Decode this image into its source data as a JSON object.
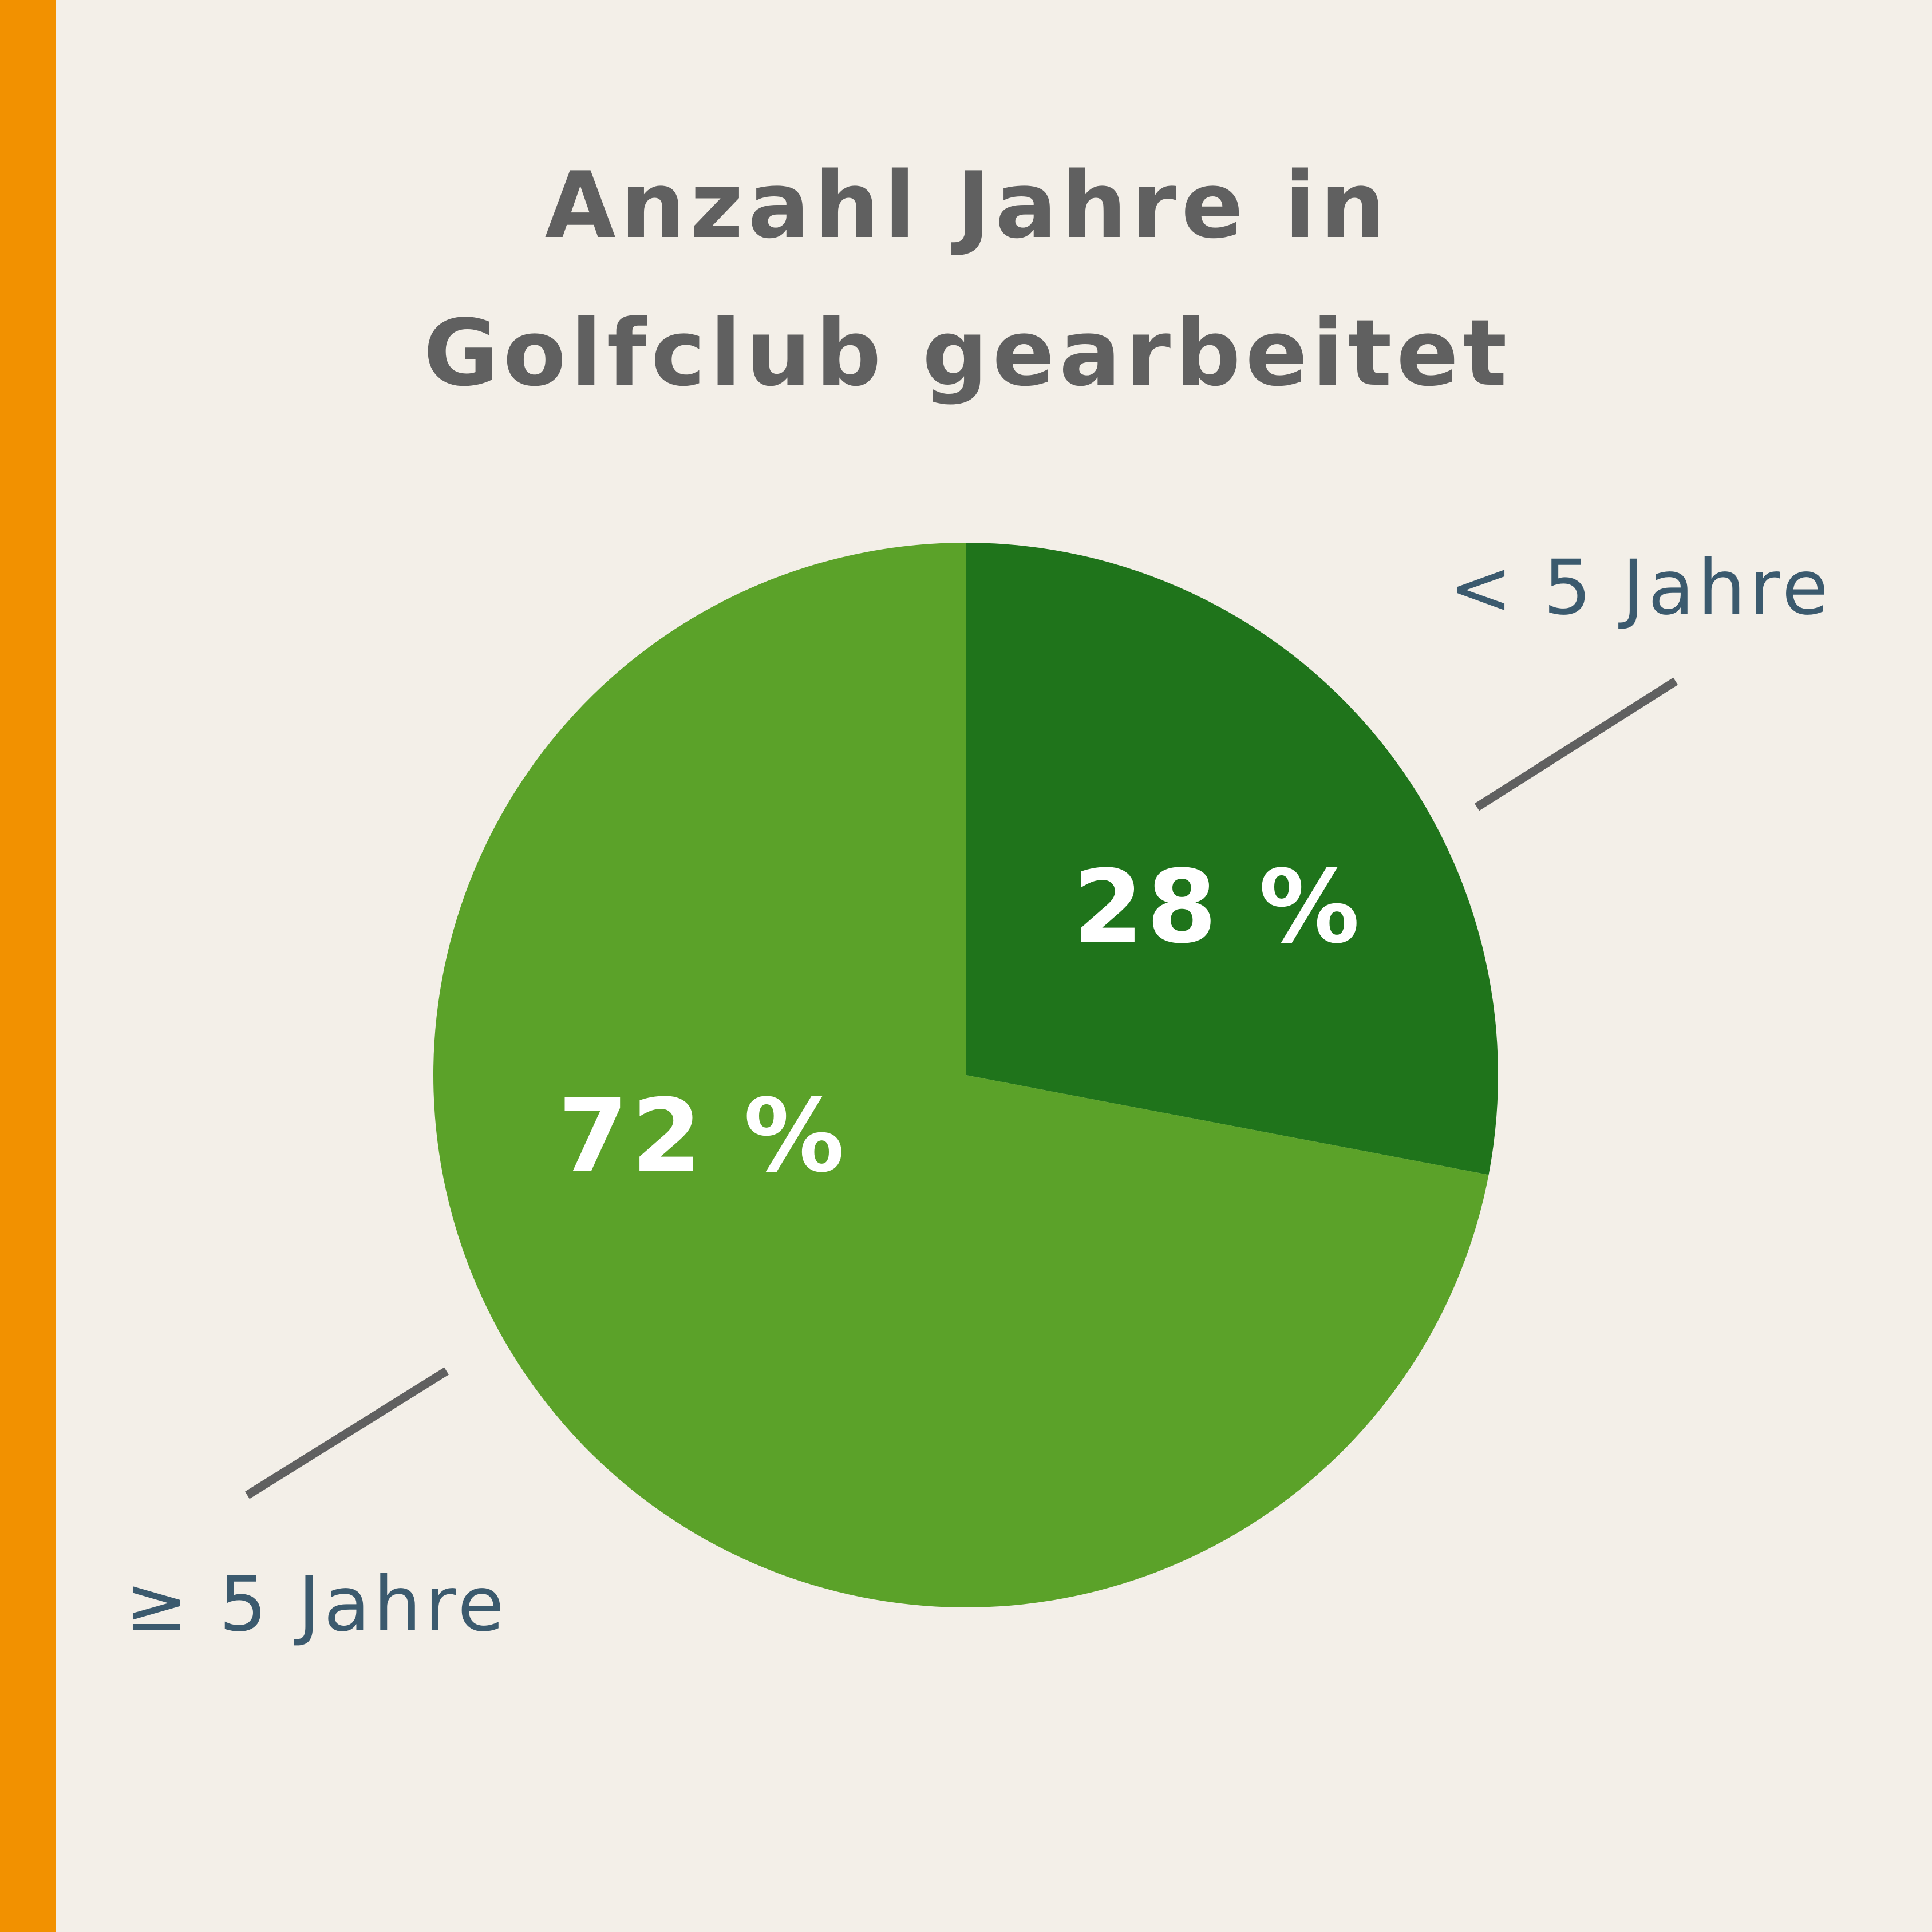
{
  "colors": {
    "background": "#f3efe8",
    "accent_bar": "#f29100",
    "title": "#606060",
    "leader_line": "#606060",
    "legend_text": "#3b5a6e",
    "value_text": "#ffffff"
  },
  "chart_data": {
    "type": "pie",
    "title_lines": [
      "Anzahl Jahre in",
      "Golfclub gearbeitet"
    ],
    "slices": [
      {
        "label": "< 5 Jahre",
        "value": 28,
        "value_label": "28 %",
        "color": "#1f741b"
      },
      {
        "label": "≥ 5 Jahre",
        "value": 72,
        "value_label": "72 %",
        "color": "#5ba229"
      }
    ],
    "start": "12 o'clock",
    "direction": "clockwise",
    "legend": "callouts with leader lines"
  }
}
